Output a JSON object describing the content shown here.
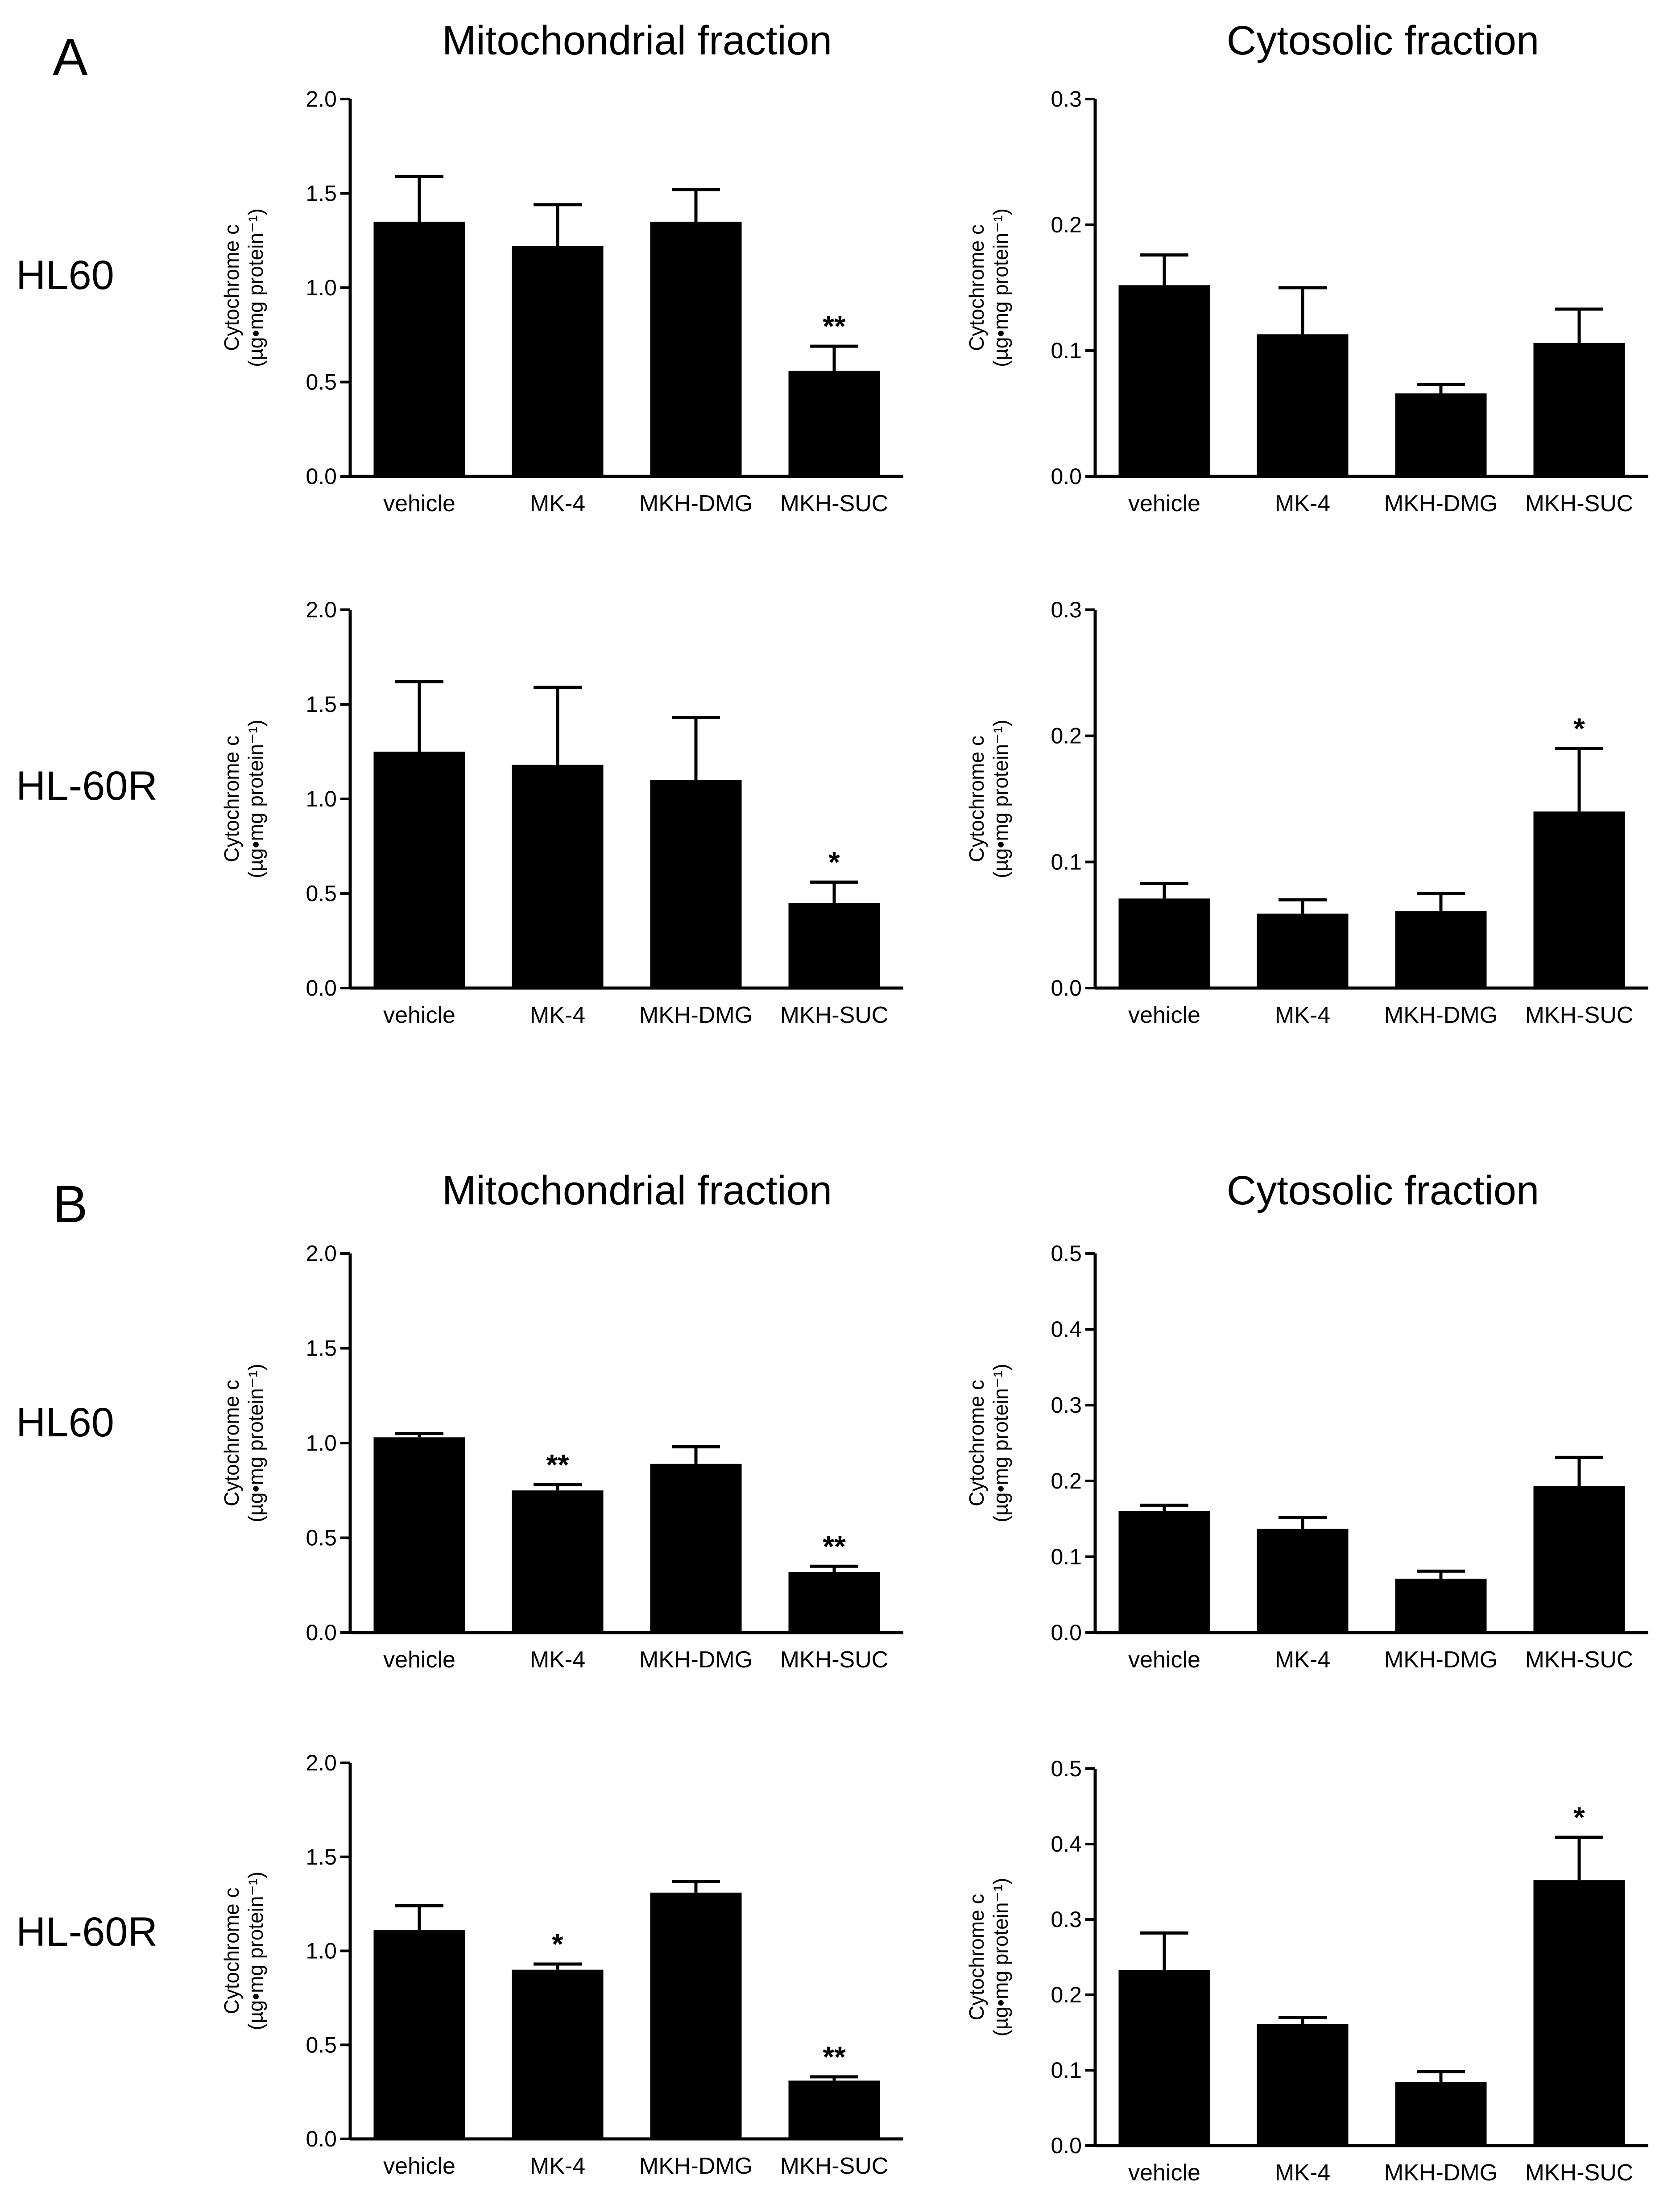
{
  "figure": {
    "panel_a_label": "A",
    "panel_b_label": "B",
    "column_titles": [
      "Mitochondrial fraction",
      "Cytosolic fraction"
    ],
    "row_labels": [
      "HL60",
      "HL-60R"
    ]
  },
  "chart_data": [
    {
      "id": "A-HL60-mito",
      "panel": "A",
      "row_label": "HL60",
      "title": "Mitochondrial fraction",
      "type": "bar",
      "categories": [
        "vehicle",
        "MK-4",
        "MKH-DMG",
        "MKH-SUC"
      ],
      "values": [
        1.35,
        1.22,
        1.35,
        0.56
      ],
      "errors": [
        0.24,
        0.22,
        0.17,
        0.13
      ],
      "significance": [
        "",
        "",
        "",
        "**"
      ],
      "ylabel_line1": "Cytochrome c",
      "ylabel_line2": "(µg•mg protein⁻¹)",
      "ylim": [
        0,
        2.0
      ],
      "yticks": [
        "0.0",
        "0.5",
        "1.0",
        "1.5",
        "2.0"
      ]
    },
    {
      "id": "A-HL60-cyto",
      "panel": "A",
      "row_label": "HL60",
      "title": "Cytosolic fraction",
      "type": "bar",
      "categories": [
        "vehicle",
        "MK-4",
        "MKH-DMG",
        "MKH-SUC"
      ],
      "values": [
        0.152,
        0.113,
        0.066,
        0.106
      ],
      "errors": [
        0.024,
        0.037,
        0.007,
        0.027
      ],
      "significance": [
        "",
        "",
        "",
        ""
      ],
      "ylabel_line1": "Cytochrome c",
      "ylabel_line2": "(µg•mg protein⁻¹)",
      "ylim": [
        0,
        0.3
      ],
      "yticks": [
        "0.0",
        "0.1",
        "0.2",
        "0.3"
      ]
    },
    {
      "id": "A-HL60R-mito",
      "panel": "A",
      "row_label": "HL-60R",
      "title": "Mitochondrial fraction",
      "type": "bar",
      "categories": [
        "vehicle",
        "MK-4",
        "MKH-DMG",
        "MKH-SUC"
      ],
      "values": [
        1.25,
        1.18,
        1.1,
        0.45
      ],
      "errors": [
        0.37,
        0.41,
        0.33,
        0.11
      ],
      "significance": [
        "",
        "",
        "",
        "*"
      ],
      "ylabel_line1": "Cytochrome c",
      "ylabel_line2": "(µg•mg protein⁻¹)",
      "ylim": [
        0,
        2.0
      ],
      "yticks": [
        "0.0",
        "0.5",
        "1.0",
        "1.5",
        "2.0"
      ]
    },
    {
      "id": "A-HL60R-cyto",
      "panel": "A",
      "row_label": "HL-60R",
      "title": "Cytosolic fraction",
      "type": "bar",
      "categories": [
        "vehicle",
        "MK-4",
        "MKH-DMG",
        "MKH-SUC"
      ],
      "values": [
        0.071,
        0.059,
        0.061,
        0.14
      ],
      "errors": [
        0.012,
        0.011,
        0.014,
        0.05
      ],
      "significance": [
        "",
        "",
        "",
        "*"
      ],
      "ylabel_line1": "Cytochrome c",
      "ylabel_line2": "(µg•mg protein⁻¹)",
      "ylim": [
        0,
        0.3
      ],
      "yticks": [
        "0.0",
        "0.1",
        "0.2",
        "0.3"
      ]
    },
    {
      "id": "B-HL60-mito",
      "panel": "B",
      "row_label": "HL60",
      "title": "Mitochondrial fraction",
      "type": "bar",
      "categories": [
        "vehicle",
        "MK-4",
        "MKH-DMG",
        "MKH-SUC"
      ],
      "values": [
        1.03,
        0.75,
        0.89,
        0.32
      ],
      "errors": [
        0.02,
        0.03,
        0.09,
        0.03
      ],
      "significance": [
        "",
        "**",
        "",
        "**"
      ],
      "ylabel_line1": "Cytochrome c",
      "ylabel_line2": "(µg•mg protein⁻¹)",
      "ylim": [
        0,
        2.0
      ],
      "yticks": [
        "0.0",
        "0.5",
        "1.0",
        "1.5",
        "2.0"
      ]
    },
    {
      "id": "B-HL60-cyto",
      "panel": "B",
      "row_label": "HL60",
      "title": "Cytosolic fraction",
      "type": "bar",
      "categories": [
        "vehicle",
        "MK-4",
        "MKH-DMG",
        "MKH-SUC"
      ],
      "values": [
        0.16,
        0.137,
        0.071,
        0.193
      ],
      "errors": [
        0.008,
        0.015,
        0.01,
        0.038
      ],
      "significance": [
        "",
        "",
        "",
        ""
      ],
      "ylabel_line1": "Cytochrome c",
      "ylabel_line2": "(µg•mg protein⁻¹)",
      "ylim": [
        0,
        0.5
      ],
      "yticks": [
        "0.0",
        "0.1",
        "0.2",
        "0.3",
        "0.4",
        "0.5"
      ]
    },
    {
      "id": "B-HL60R-mito",
      "panel": "B",
      "row_label": "HL-60R",
      "title": "Mitochondrial fraction",
      "type": "bar",
      "categories": [
        "vehicle",
        "MK-4",
        "MKH-DMG",
        "MKH-SUC"
      ],
      "values": [
        1.11,
        0.9,
        1.31,
        0.31
      ],
      "errors": [
        0.13,
        0.03,
        0.06,
        0.02
      ],
      "significance": [
        "",
        "*",
        "",
        "**"
      ],
      "ylabel_line1": "Cytochrome c",
      "ylabel_line2": "(µg•mg protein⁻¹)",
      "ylim": [
        0,
        2.0
      ],
      "yticks": [
        "0.0",
        "0.5",
        "1.0",
        "1.5",
        "2.0"
      ]
    },
    {
      "id": "B-HL60R-cyto",
      "panel": "B",
      "row_label": "HL-60R",
      "title": "Cytosolic fraction",
      "type": "bar",
      "categories": [
        "vehicle",
        "MK-4",
        "MKH-DMG",
        "MKH-SUC"
      ],
      "values": [
        0.233,
        0.161,
        0.084,
        0.352
      ],
      "errors": [
        0.049,
        0.009,
        0.014,
        0.057
      ],
      "significance": [
        "",
        "",
        "",
        "*"
      ],
      "ylabel_line1": "Cytochrome c",
      "ylabel_line2": "(µg•mg protein⁻¹)",
      "ylim": [
        0,
        0.5
      ],
      "yticks": [
        "0.0",
        "0.1",
        "0.2",
        "0.3",
        "0.4",
        "0.5"
      ]
    }
  ]
}
